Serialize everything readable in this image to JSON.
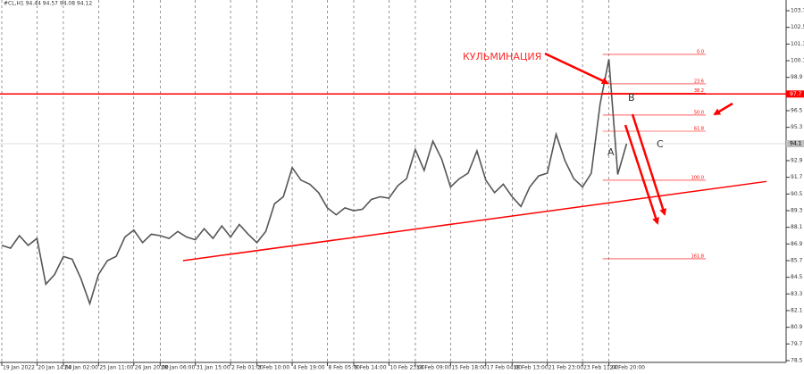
{
  "chart_data": {
    "type": "line",
    "title": "#CL,H1  94.44 94.57 94.08 94.12",
    "categories": [
      "19 Jan 2022",
      null,
      null,
      null,
      "20 Jan 14:00",
      null,
      null,
      "24 Jan 02:00",
      null,
      null,
      null,
      "25 Jan 11:00",
      null,
      null,
      null,
      "26 Jan 20:00",
      null,
      null,
      "28 Jan 06:00",
      null,
      null,
      null,
      "31 Jan 15:00",
      null,
      null,
      null,
      "2 Feb 01:00",
      null,
      null,
      "3 Feb 10:00",
      null,
      null,
      null,
      "4 Feb 19:00",
      null,
      null,
      null,
      "8 Feb 05:00",
      null,
      null,
      "9 Feb 14:00",
      null,
      null,
      null,
      "10 Feb 23:00",
      null,
      null,
      "14 Feb 09:00",
      null,
      null,
      null,
      "15 Feb 18:00",
      null,
      null,
      null,
      "17 Feb 04:00",
      null,
      null,
      "18 Feb 13:00",
      null,
      null,
      null,
      "21 Feb 23:00",
      null,
      null,
      null,
      "23 Feb 11:00",
      null,
      null,
      "24 Feb 20:00",
      null,
      null
    ],
    "series": [
      {
        "name": "#CL,H1",
        "color": "#555555",
        "values": [
          86.8,
          86.6,
          87.5,
          86.8,
          87.3,
          84.0,
          84.7,
          86.0,
          85.8,
          84.4,
          82.6,
          84.7,
          85.7,
          86.0,
          87.4,
          87.9,
          87.0,
          87.6,
          87.5,
          87.3,
          87.8,
          87.4,
          87.2,
          88.0,
          87.3,
          88.2,
          87.4,
          88.3,
          87.6,
          87.0,
          87.8,
          89.8,
          90.3,
          92.4,
          91.5,
          91.2,
          90.6,
          89.5,
          89.0,
          89.5,
          89.3,
          89.4,
          90.1,
          90.3,
          90.2,
          91.1,
          91.6,
          93.7,
          92.2,
          94.3,
          93.0,
          91.0,
          91.6,
          92.0,
          93.6,
          91.5,
          90.6,
          91.2,
          90.3,
          89.6,
          91.0,
          91.8,
          92.0,
          94.8,
          92.9,
          91.6,
          91.0,
          92.0,
          97.0,
          100.2,
          91.9,
          94.12
        ]
      }
    ],
    "ylim": [
      78.37,
      104.47
    ],
    "yticks": [
      103.7,
      102.5,
      101.3,
      100.1,
      98.9,
      97.7,
      96.5,
      95.3,
      94.1,
      92.9,
      91.7,
      90.5,
      89.3,
      88.1,
      86.9,
      85.7,
      84.5,
      83.3,
      82.1,
      80.9,
      79.7,
      78.5
    ],
    "grid": true,
    "current_price": {
      "value": 94.12,
      "label": "94.1"
    },
    "level_line": {
      "value": 97.7,
      "label": "97.7",
      "color": "#ff0000"
    },
    "trendline": {
      "x": [
        20.6,
        86.9
      ],
      "y": [
        85.7,
        91.4
      ],
      "color": "#ff0000"
    },
    "fibo": {
      "start": 68.3,
      "end": 80,
      "color": "#ff0000",
      "levels": [
        {
          "label": "0.0",
          "price": 100.55
        },
        {
          "label": "23.6",
          "price": 98.43
        },
        {
          "label": "38.2",
          "price": 97.76
        },
        {
          "label": "50.0",
          "price": 96.18
        },
        {
          "label": "61.8",
          "price": 95.02
        },
        {
          "label": "100.0",
          "price": 91.49
        },
        {
          "label": "161.8",
          "price": 85.83
        }
      ]
    },
    "annotations": {
      "culmination": "КУЛЬМИНАЦИЯ",
      "a": "A",
      "b": "B",
      "c": "C"
    }
  }
}
